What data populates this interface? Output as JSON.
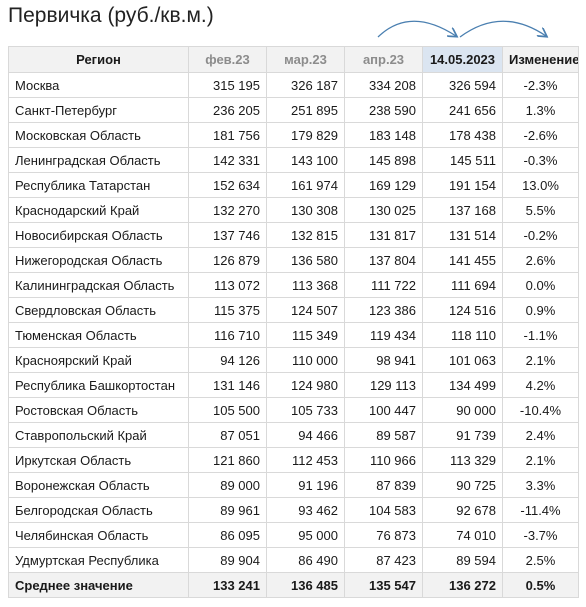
{
  "title": "Первичка (руб./кв.м.)",
  "colors": {
    "negative": "#e0201f",
    "positive": "#1a9a1a",
    "arrow": "#4a7fb0"
  },
  "table": {
    "headers": [
      "Регион",
      "фев.23",
      "мар.23",
      "апр.23",
      "14.05.2023",
      "Изменение"
    ],
    "rows": [
      [
        "Москва",
        "315 195",
        "326 187",
        "334 208",
        "326 594",
        "-2.3%"
      ],
      [
        "Санкт-Петербург",
        "236 205",
        "251 895",
        "238 590",
        "241 656",
        "1.3%"
      ],
      [
        "Московская Область",
        "181 756",
        "179 829",
        "183 148",
        "178 438",
        "-2.6%"
      ],
      [
        "Ленинградская Область",
        "142 331",
        "143 100",
        "145 898",
        "145 511",
        "-0.3%"
      ],
      [
        "Республика Татарстан",
        "152 634",
        "161 974",
        "169 129",
        "191 154",
        "13.0%"
      ],
      [
        "Краснодарский Край",
        "132 270",
        "130 308",
        "130 025",
        "137 168",
        "5.5%"
      ],
      [
        "Новосибирская Область",
        "137 746",
        "132 815",
        "131 817",
        "131 514",
        "-0.2%"
      ],
      [
        "Нижегородская Область",
        "126 879",
        "136 580",
        "137 804",
        "141 455",
        "2.6%"
      ],
      [
        "Калининградская Область",
        "113 072",
        "113 368",
        "111 722",
        "111 694",
        "0.0%"
      ],
      [
        "Свердловская Область",
        "115 375",
        "124 507",
        "123 386",
        "124 516",
        "0.9%"
      ],
      [
        "Тюменская Область",
        "116 710",
        "115 349",
        "119 434",
        "118 110",
        "-1.1%"
      ],
      [
        "Красноярский Край",
        "94 126",
        "110 000",
        "98 941",
        "101 063",
        "2.1%"
      ],
      [
        "Республика Башкортостан",
        "131 146",
        "124 980",
        "129 113",
        "134 499",
        "4.2%"
      ],
      [
        "Ростовская Область",
        "105 500",
        "105 733",
        "100 447",
        "90 000",
        "-10.4%"
      ],
      [
        "Ставропольский Край",
        "87 051",
        "94 466",
        "89 587",
        "91 739",
        "2.4%"
      ],
      [
        "Иркутская Область",
        "121 860",
        "112 453",
        "110 966",
        "113 329",
        "2.1%"
      ],
      [
        "Воронежская Область",
        "89 000",
        "91 196",
        "87 839",
        "90 725",
        "3.3%"
      ],
      [
        "Белгородская Область",
        "89 961",
        "93 462",
        "104 583",
        "92 678",
        "-11.4%"
      ],
      [
        "Челябинская Область",
        "86 095",
        "95 000",
        "76 873",
        "74 010",
        "-3.7%"
      ],
      [
        "Удмуртская Республика",
        "89 904",
        "86 490",
        "87 423",
        "89 594",
        "2.5%"
      ]
    ],
    "average": [
      "Среднее значение",
      "133 241",
      "136 485",
      "135 547",
      "136 272",
      "0.5%"
    ]
  }
}
